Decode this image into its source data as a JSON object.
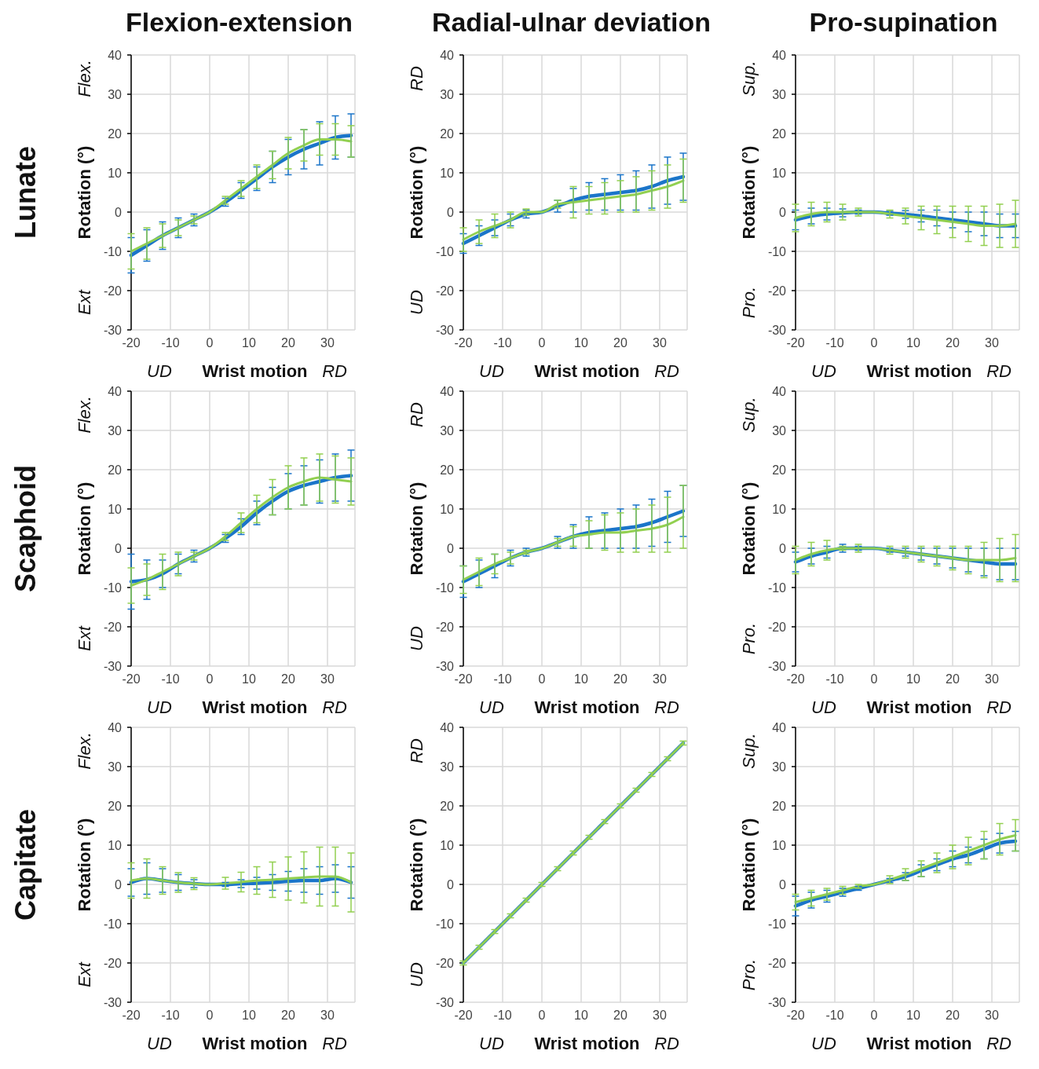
{
  "chart_data": [
    {
      "type": "line",
      "title": "Flexion-extension",
      "xlabel": "Wrist motion",
      "ylabel": "Rotation (°)",
      "annotations": [
        "Flex.",
        "Ext",
        "UD",
        "RD",
        "Lunate"
      ],
      "x": [
        -20,
        -16,
        -12,
        -8,
        -4,
        0,
        4,
        8,
        12,
        16,
        20,
        24,
        28,
        32,
        36
      ],
      "xlim": [
        -20,
        37
      ],
      "xticks": [
        -20,
        -10,
        0,
        10,
        20,
        30
      ],
      "ylim": [
        -30,
        40
      ],
      "yticks": [
        -30,
        -20,
        -10,
        0,
        10,
        20,
        30,
        40
      ],
      "grid": true,
      "line_style": "solid",
      "series": [
        {
          "color": "#1b75c9",
          "values": [
            -11,
            -8.5,
            -6,
            -4,
            -2,
            0,
            2.5,
            5.5,
            8.5,
            11.5,
            14,
            16,
            17.5,
            19,
            19.5
          ],
          "errors": [
            4.5,
            4,
            3.5,
            2.5,
            1.5,
            null,
            1,
            2,
            3,
            4,
            4.5,
            5,
            5.5,
            5.5,
            5.5
          ]
        },
        {
          "color": "#92d050",
          "values": [
            -10,
            -8,
            -6,
            -4,
            -2,
            0,
            3,
            6,
            9,
            12,
            15,
            17,
            18.5,
            18.5,
            18
          ],
          "errors": [
            4.5,
            4,
            3,
            2,
            1,
            null,
            1,
            2,
            3,
            3.5,
            4,
            4,
            4,
            4,
            4
          ]
        }
      ]
    },
    {
      "type": "line",
      "title": "Radial-ulnar deviation",
      "xlabel": "Wrist motion",
      "ylabel": "Rotation (°)",
      "annotations": [
        "RD",
        "UD",
        "UD",
        "RD"
      ],
      "x": [
        -20,
        -16,
        -12,
        -8,
        -4,
        0,
        4,
        8,
        12,
        16,
        20,
        24,
        28,
        32,
        36
      ],
      "xlim": [
        -20,
        37
      ],
      "xticks": [
        -20,
        -10,
        0,
        10,
        20,
        30
      ],
      "ylim": [
        -30,
        40
      ],
      "yticks": [
        -30,
        -20,
        -10,
        0,
        10,
        20,
        30,
        40
      ],
      "grid": true,
      "line_style": "solid",
      "series": [
        {
          "color": "#1b75c9",
          "values": [
            -8,
            -6,
            -4,
            -2,
            -0.5,
            0,
            1.5,
            3,
            4,
            4.5,
            5,
            5.5,
            6.5,
            8,
            9
          ],
          "errors": [
            2.5,
            2.5,
            2,
            1.5,
            1,
            null,
            1.5,
            3,
            3.5,
            4,
            4.5,
            5,
            5.5,
            6,
            6
          ]
        },
        {
          "color": "#92d050",
          "values": [
            -7,
            -5,
            -3.5,
            -2,
            0,
            0,
            2,
            2.5,
            3,
            3.5,
            4,
            4.5,
            5.5,
            6.5,
            8
          ],
          "errors": [
            3,
            3,
            3,
            2,
            0.8,
            null,
            1,
            4,
            3.5,
            4,
            4,
            4.5,
            5,
            5.5,
            5.5
          ]
        }
      ]
    },
    {
      "type": "line",
      "title": "Pro-supination",
      "xlabel": "Wrist motion",
      "ylabel": "Rotation (°)",
      "annotations": [
        "Sup.",
        "Pro.",
        "UD",
        "RD"
      ],
      "x": [
        -20,
        -16,
        -12,
        -8,
        -4,
        0,
        4,
        8,
        12,
        16,
        20,
        24,
        28,
        32,
        36
      ],
      "xlim": [
        -20,
        37
      ],
      "xticks": [
        -20,
        -10,
        0,
        10,
        20,
        30
      ],
      "ylim": [
        -30,
        40
      ],
      "yticks": [
        -30,
        -20,
        -10,
        0,
        10,
        20,
        30,
        40
      ],
      "grid": true,
      "line_style": "solid",
      "series": [
        {
          "color": "#1b75c9",
          "values": [
            -2,
            -1,
            -0.5,
            -0.2,
            0,
            0,
            -0.3,
            -0.6,
            -1,
            -1.5,
            -2,
            -2.5,
            -3,
            -3.5,
            -3.5
          ],
          "errors": [
            2.5,
            2,
            1.5,
            1,
            0.5,
            null,
            0.5,
            1,
            1.5,
            2,
            2,
            2.5,
            3,
            3,
            3
          ]
        },
        {
          "color": "#92d050",
          "values": [
            -1.5,
            -0.5,
            0,
            0,
            0,
            0,
            -0.5,
            -1,
            -1.5,
            -2,
            -2.5,
            -3,
            -3.5,
            -3.5,
            -3
          ],
          "errors": [
            3.5,
            3,
            2.5,
            2,
            1,
            null,
            1,
            2,
            3,
            3.5,
            4,
            4.5,
            5,
            5.5,
            6
          ]
        }
      ]
    },
    {
      "type": "line",
      "xlabel": "Wrist motion",
      "ylabel": "Rotation (°)",
      "annotations": [
        "Flex.",
        "Ext",
        "UD",
        "RD",
        "Scaphoid"
      ],
      "x": [
        -20,
        -16,
        -12,
        -8,
        -4,
        0,
        4,
        8,
        12,
        16,
        20,
        24,
        28,
        32,
        36
      ],
      "xlim": [
        -20,
        37
      ],
      "xticks": [
        -20,
        -10,
        0,
        10,
        20,
        30
      ],
      "ylim": [
        -30,
        40
      ],
      "yticks": [
        -30,
        -20,
        -10,
        0,
        10,
        20,
        30,
        40
      ],
      "grid": true,
      "line_style": "solid",
      "series": [
        {
          "color": "#1b75c9",
          "values": [
            -8.5,
            -8,
            -6.5,
            -4,
            -2,
            0,
            2.5,
            5.5,
            9,
            12,
            14.5,
            16,
            17,
            18,
            18.5
          ],
          "errors": [
            7,
            5,
            3.5,
            2.5,
            1.5,
            null,
            1,
            2,
            3,
            3.5,
            4.5,
            5,
            5.5,
            6,
            6.5
          ]
        },
        {
          "color": "#92d050",
          "values": [
            -9.5,
            -8,
            -6,
            -4,
            -2,
            0,
            3,
            6.5,
            10,
            13,
            15.5,
            17,
            18,
            17.5,
            17
          ],
          "errors": [
            4.5,
            4,
            4.5,
            3,
            1,
            null,
            1,
            2.5,
            3.5,
            4.5,
            5.5,
            6,
            6,
            6,
            6
          ]
        }
      ]
    },
    {
      "type": "line",
      "xlabel": "Wrist motion",
      "ylabel": "Rotation (°)",
      "annotations": [
        "RD",
        "UD",
        "UD",
        "RD"
      ],
      "x": [
        -20,
        -16,
        -12,
        -8,
        -4,
        0,
        4,
        8,
        12,
        16,
        20,
        24,
        28,
        32,
        36
      ],
      "xlim": [
        -20,
        37
      ],
      "xticks": [
        -20,
        -10,
        0,
        10,
        20,
        30
      ],
      "ylim": [
        -30,
        40
      ],
      "yticks": [
        -30,
        -20,
        -10,
        0,
        10,
        20,
        30,
        40
      ],
      "grid": true,
      "line_style": "solid",
      "series": [
        {
          "color": "#1b75c9",
          "values": [
            -8.5,
            -6.5,
            -4.5,
            -2.5,
            -1,
            0,
            1.5,
            3,
            4,
            4.5,
            5,
            5.5,
            6.5,
            8,
            9.5
          ],
          "errors": [
            4,
            3.5,
            3,
            2,
            1,
            null,
            1.5,
            3,
            4,
            4.5,
            5,
            5.5,
            6,
            6.5,
            6.5
          ]
        },
        {
          "color": "#92d050",
          "values": [
            -8,
            -6,
            -4,
            -2.5,
            -1,
            0,
            1.5,
            3,
            3.5,
            4,
            4,
            4.5,
            5,
            6,
            8
          ],
          "errors": [
            3.5,
            3.5,
            2.5,
            1.5,
            0.5,
            null,
            1,
            2.5,
            3.5,
            4.5,
            5,
            5.5,
            6,
            7,
            8
          ]
        }
      ]
    },
    {
      "type": "line",
      "xlabel": "Wrist motion",
      "ylabel": "Rotation (°)",
      "annotations": [
        "Sup.",
        "Pro.",
        "UD",
        "RD"
      ],
      "x": [
        -20,
        -16,
        -12,
        -8,
        -4,
        0,
        4,
        8,
        12,
        16,
        20,
        24,
        28,
        32,
        36
      ],
      "xlim": [
        -20,
        37
      ],
      "xticks": [
        -20,
        -10,
        0,
        10,
        20,
        30
      ],
      "ylim": [
        -30,
        40
      ],
      "yticks": [
        -30,
        -20,
        -10,
        0,
        10,
        20,
        30,
        40
      ],
      "grid": true,
      "line_style": "solid",
      "series": [
        {
          "color": "#1b75c9",
          "values": [
            -3.5,
            -2,
            -1,
            0,
            0,
            0,
            -0.5,
            -1,
            -1.5,
            -2,
            -2.5,
            -3,
            -3.5,
            -4,
            -4
          ],
          "errors": [
            2.5,
            2,
            1.5,
            1,
            0.5,
            null,
            0.5,
            1,
            1.5,
            2,
            2.5,
            3,
            3.5,
            4,
            4
          ]
        },
        {
          "color": "#92d050",
          "values": [
            -3,
            -1.5,
            -0.5,
            0,
            0,
            0,
            -0.5,
            -1,
            -1.5,
            -2,
            -2.5,
            -3,
            -3,
            -3,
            -2.5
          ],
          "errors": [
            3.5,
            3,
            2.5,
            0.5,
            1,
            null,
            1,
            1.5,
            2,
            2.5,
            3,
            3.5,
            4.5,
            5.5,
            6
          ]
        }
      ]
    },
    {
      "type": "line",
      "xlabel": "Wrist motion",
      "ylabel": "Rotation (°)",
      "annotations": [
        "Flex.",
        "Ext",
        "UD",
        "RD",
        "Capitate"
      ],
      "x": [
        -20,
        -16,
        -12,
        -8,
        -4,
        0,
        4,
        8,
        12,
        16,
        20,
        24,
        28,
        32,
        36
      ],
      "xlim": [
        -20,
        37
      ],
      "xticks": [
        -20,
        -10,
        0,
        10,
        20,
        30
      ],
      "ylim": [
        -30,
        40
      ],
      "yticks": [
        -30,
        -20,
        -10,
        0,
        10,
        20,
        30,
        40
      ],
      "grid": true,
      "line_style": "solid",
      "series": [
        {
          "color": "#1b75c9",
          "values": [
            0.5,
            1.5,
            1,
            0.5,
            0.2,
            0,
            0,
            0.2,
            0.3,
            0.5,
            0.8,
            1,
            1,
            1.5,
            0.5
          ],
          "errors": [
            3.5,
            4,
            3,
            2,
            1,
            null,
            0.5,
            1,
            1.5,
            2,
            2.5,
            3,
            3.5,
            3.5,
            4
          ]
        },
        {
          "color": "#92d050",
          "values": [
            1,
            1.5,
            1,
            0.5,
            0.2,
            0,
            0.3,
            0.6,
            1,
            1.2,
            1.5,
            1.8,
            2,
            2,
            0.5
          ],
          "errors": [
            4.5,
            5,
            3.5,
            2.5,
            1.5,
            null,
            1.5,
            2.5,
            3.5,
            4.5,
            5.5,
            6.5,
            7.5,
            7.5,
            7.5
          ]
        }
      ]
    },
    {
      "type": "line",
      "xlabel": "Wrist motion",
      "ylabel": "Rotation (°)",
      "annotations": [
        "RD",
        "UD",
        "UD",
        "RD"
      ],
      "x": [
        -20,
        -16,
        -12,
        -8,
        -4,
        0,
        4,
        8,
        12,
        16,
        20,
        24,
        28,
        32,
        36
      ],
      "xlim": [
        -20,
        37
      ],
      "xticks": [
        -20,
        -10,
        0,
        10,
        20,
        30
      ],
      "ylim": [
        -30,
        40
      ],
      "yticks": [
        -30,
        -20,
        -10,
        0,
        10,
        20,
        30,
        40
      ],
      "grid": true,
      "line_style": "solid",
      "series": [
        {
          "color": "#1b75c9",
          "values": [
            -20,
            -16,
            -12,
            -8,
            -4,
            0,
            4,
            8,
            12,
            16,
            20,
            24,
            28,
            32,
            36
          ],
          "errors": [
            null,
            null,
            null,
            null,
            null,
            null,
            null,
            null,
            null,
            null,
            null,
            null,
            null,
            null,
            null
          ]
        },
        {
          "color": "#92d050",
          "values": [
            -20,
            -16,
            -12,
            -8,
            -4,
            0,
            4,
            8,
            12,
            16,
            20,
            24,
            28,
            32,
            36
          ],
          "errors": [
            0.5,
            0.5,
            0.5,
            0.5,
            0.5,
            0.5,
            0.5,
            0.5,
            0.5,
            0.5,
            0.5,
            0.5,
            0.5,
            0.5,
            0.5
          ]
        }
      ]
    },
    {
      "type": "line",
      "xlabel": "Wrist motion",
      "ylabel": "Rotation (°)",
      "annotations": [
        "Sup.",
        "Pro.",
        "UD",
        "RD"
      ],
      "x": [
        -20,
        -16,
        -12,
        -8,
        -4,
        0,
        4,
        8,
        12,
        16,
        20,
        24,
        28,
        32,
        36
      ],
      "xlim": [
        -20,
        37
      ],
      "xticks": [
        -20,
        -10,
        0,
        10,
        20,
        30
      ],
      "ylim": [
        -30,
        40
      ],
      "yticks": [
        -30,
        -20,
        -10,
        0,
        10,
        20,
        30,
        40
      ],
      "grid": true,
      "line_style": "solid",
      "series": [
        {
          "color": "#1b75c9",
          "values": [
            -5.5,
            -4,
            -3,
            -2,
            -1,
            0,
            1,
            2,
            3.5,
            5,
            6.5,
            7.5,
            9,
            10.5,
            11
          ],
          "errors": [
            2.5,
            2,
            1.5,
            1,
            0.5,
            null,
            0.5,
            1,
            1.5,
            1.5,
            2,
            2,
            2.5,
            2.5,
            2.5
          ]
        },
        {
          "color": "#92d050",
          "values": [
            -4.5,
            -3.5,
            -2.5,
            -1.5,
            -0.5,
            0,
            1.2,
            2.5,
            4,
            5.5,
            7,
            8.5,
            10,
            11.5,
            12.5
          ],
          "errors": [
            2,
            2,
            1.5,
            1,
            0.5,
            null,
            1,
            1.5,
            2,
            2.5,
            3,
            3.5,
            3.5,
            4,
            4
          ]
        }
      ]
    }
  ]
}
